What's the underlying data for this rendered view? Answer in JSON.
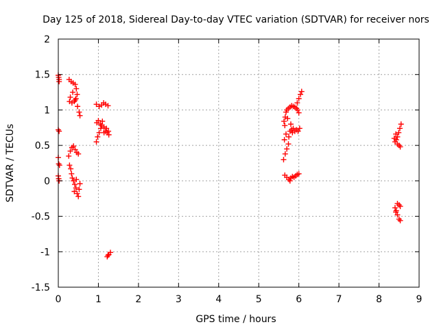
{
  "chart_data": {
    "type": "scatter",
    "title": "Day 125 of 2018, Sidereal Day-to-day VTEC variation (SDTVAR) for receiver nors",
    "xlabel": "GPS time / hours",
    "ylabel": "SDTVAR / TECUs",
    "xlim": [
      0,
      9
    ],
    "ylim": [
      -1.5,
      2
    ],
    "xticks": [
      0,
      1,
      2,
      3,
      4,
      5,
      6,
      7,
      8,
      9
    ],
    "yticks": [
      -1.5,
      -1,
      -0.5,
      0,
      0.5,
      1,
      1.5,
      2
    ],
    "xtick_labels": [
      "0",
      "1",
      "2",
      "3",
      "4",
      "5",
      "6",
      "7",
      "8",
      "9"
    ],
    "ytick_labels": [
      "-1.5",
      "-1",
      "-0.5",
      "0",
      "0.5",
      "1",
      "1.5",
      "2"
    ],
    "grid": true,
    "marker": "plus",
    "color": "#ff0000",
    "series": [
      {
        "name": "SDTVAR",
        "points": [
          [
            0.0,
            1.49
          ],
          [
            0.01,
            1.46
          ],
          [
            0.02,
            1.43
          ],
          [
            0.02,
            1.4
          ],
          [
            0.0,
            0.72
          ],
          [
            0.02,
            0.7
          ],
          [
            0.0,
            0.33
          ],
          [
            0.01,
            0.24
          ],
          [
            0.03,
            0.22
          ],
          [
            0.0,
            0.07
          ],
          [
            0.01,
            0.03
          ],
          [
            0.02,
            0.0
          ],
          [
            0.27,
            1.43
          ],
          [
            0.32,
            1.4
          ],
          [
            0.37,
            1.38
          ],
          [
            0.42,
            1.36
          ],
          [
            0.45,
            1.3
          ],
          [
            0.47,
            1.22
          ],
          [
            0.44,
            1.16
          ],
          [
            0.48,
            1.05
          ],
          [
            0.52,
            0.97
          ],
          [
            0.54,
            0.92
          ],
          [
            0.28,
            1.12
          ],
          [
            0.34,
            1.1
          ],
          [
            0.4,
            1.12
          ],
          [
            0.3,
            1.18
          ],
          [
            0.36,
            1.25
          ],
          [
            0.42,
            1.14
          ],
          [
            0.26,
            0.35
          ],
          [
            0.3,
            0.42
          ],
          [
            0.34,
            0.47
          ],
          [
            0.38,
            0.49
          ],
          [
            0.42,
            0.44
          ],
          [
            0.46,
            0.4
          ],
          [
            0.5,
            0.38
          ],
          [
            0.28,
            0.22
          ],
          [
            0.31,
            0.17
          ],
          [
            0.33,
            0.1
          ],
          [
            0.35,
            0.04
          ],
          [
            0.38,
            0.0
          ],
          [
            0.41,
            -0.05
          ],
          [
            0.44,
            -0.1
          ],
          [
            0.47,
            -0.18
          ],
          [
            0.5,
            -0.22
          ],
          [
            0.52,
            -0.12
          ],
          [
            0.54,
            -0.04
          ],
          [
            0.4,
            -0.15
          ],
          [
            0.45,
            0.02
          ],
          [
            0.95,
            1.08
          ],
          [
            1.02,
            1.05
          ],
          [
            1.08,
            1.07
          ],
          [
            1.13,
            1.1
          ],
          [
            1.18,
            1.08
          ],
          [
            1.24,
            1.06
          ],
          [
            0.95,
            0.55
          ],
          [
            0.98,
            0.62
          ],
          [
            1.02,
            0.68
          ],
          [
            1.06,
            0.74
          ],
          [
            0.96,
            0.82
          ],
          [
            1.0,
            0.85
          ],
          [
            1.05,
            0.8
          ],
          [
            1.1,
            0.84
          ],
          [
            1.14,
            0.76
          ],
          [
            1.18,
            0.7
          ],
          [
            1.22,
            0.68
          ],
          [
            1.26,
            0.65
          ],
          [
            1.14,
            0.68
          ],
          [
            1.2,
            0.74
          ],
          [
            1.25,
            0.7
          ],
          [
            1.08,
            0.78
          ],
          [
            1.22,
            -1.07
          ],
          [
            1.26,
            -1.04
          ],
          [
            1.3,
            -1.01
          ],
          [
            1.24,
            -1.05
          ],
          [
            5.62,
            0.3
          ],
          [
            5.66,
            0.38
          ],
          [
            5.7,
            0.45
          ],
          [
            5.74,
            0.52
          ],
          [
            5.64,
            0.58
          ],
          [
            5.68,
            0.66
          ],
          [
            5.65,
            0.78
          ],
          [
            5.63,
            0.84
          ],
          [
            5.66,
            0.9
          ],
          [
            5.68,
            0.97
          ],
          [
            5.7,
            1.0
          ],
          [
            5.74,
            1.02
          ],
          [
            5.78,
            1.04
          ],
          [
            5.82,
            1.06
          ],
          [
            5.86,
            1.05
          ],
          [
            5.9,
            1.04
          ],
          [
            5.94,
            1.02
          ],
          [
            5.97,
            1.0
          ],
          [
            6.0,
            0.96
          ],
          [
            5.96,
            1.1
          ],
          [
            6.0,
            1.16
          ],
          [
            6.04,
            1.22
          ],
          [
            6.07,
            1.26
          ],
          [
            5.78,
            0.7
          ],
          [
            5.82,
            0.72
          ],
          [
            5.86,
            0.74
          ],
          [
            5.9,
            0.7
          ],
          [
            5.94,
            0.72
          ],
          [
            5.98,
            0.7
          ],
          [
            6.02,
            0.74
          ],
          [
            5.75,
            0.62
          ],
          [
            5.8,
            0.8
          ],
          [
            5.84,
            0.68
          ],
          [
            5.72,
            0.88
          ],
          [
            5.65,
            0.08
          ],
          [
            5.7,
            0.05
          ],
          [
            5.75,
            0.02
          ],
          [
            5.8,
            0.04
          ],
          [
            5.84,
            0.06
          ],
          [
            5.88,
            0.05
          ],
          [
            5.92,
            0.07
          ],
          [
            5.96,
            0.09
          ],
          [
            6.0,
            0.1
          ],
          [
            5.78,
            0.0
          ],
          [
            8.4,
            0.55
          ],
          [
            8.43,
            0.58
          ],
          [
            8.46,
            0.62
          ],
          [
            8.49,
            0.68
          ],
          [
            8.52,
            0.74
          ],
          [
            8.55,
            0.8
          ],
          [
            8.42,
            0.66
          ],
          [
            8.46,
            0.52
          ],
          [
            8.5,
            0.5
          ],
          [
            8.53,
            0.48
          ],
          [
            8.38,
            0.6
          ],
          [
            8.4,
            -0.38
          ],
          [
            8.43,
            -0.42
          ],
          [
            8.46,
            -0.48
          ],
          [
            8.5,
            -0.54
          ],
          [
            8.53,
            -0.56
          ],
          [
            8.46,
            -0.32
          ],
          [
            8.5,
            -0.34
          ],
          [
            8.53,
            -0.36
          ],
          [
            8.42,
            -0.44
          ]
        ]
      }
    ]
  }
}
